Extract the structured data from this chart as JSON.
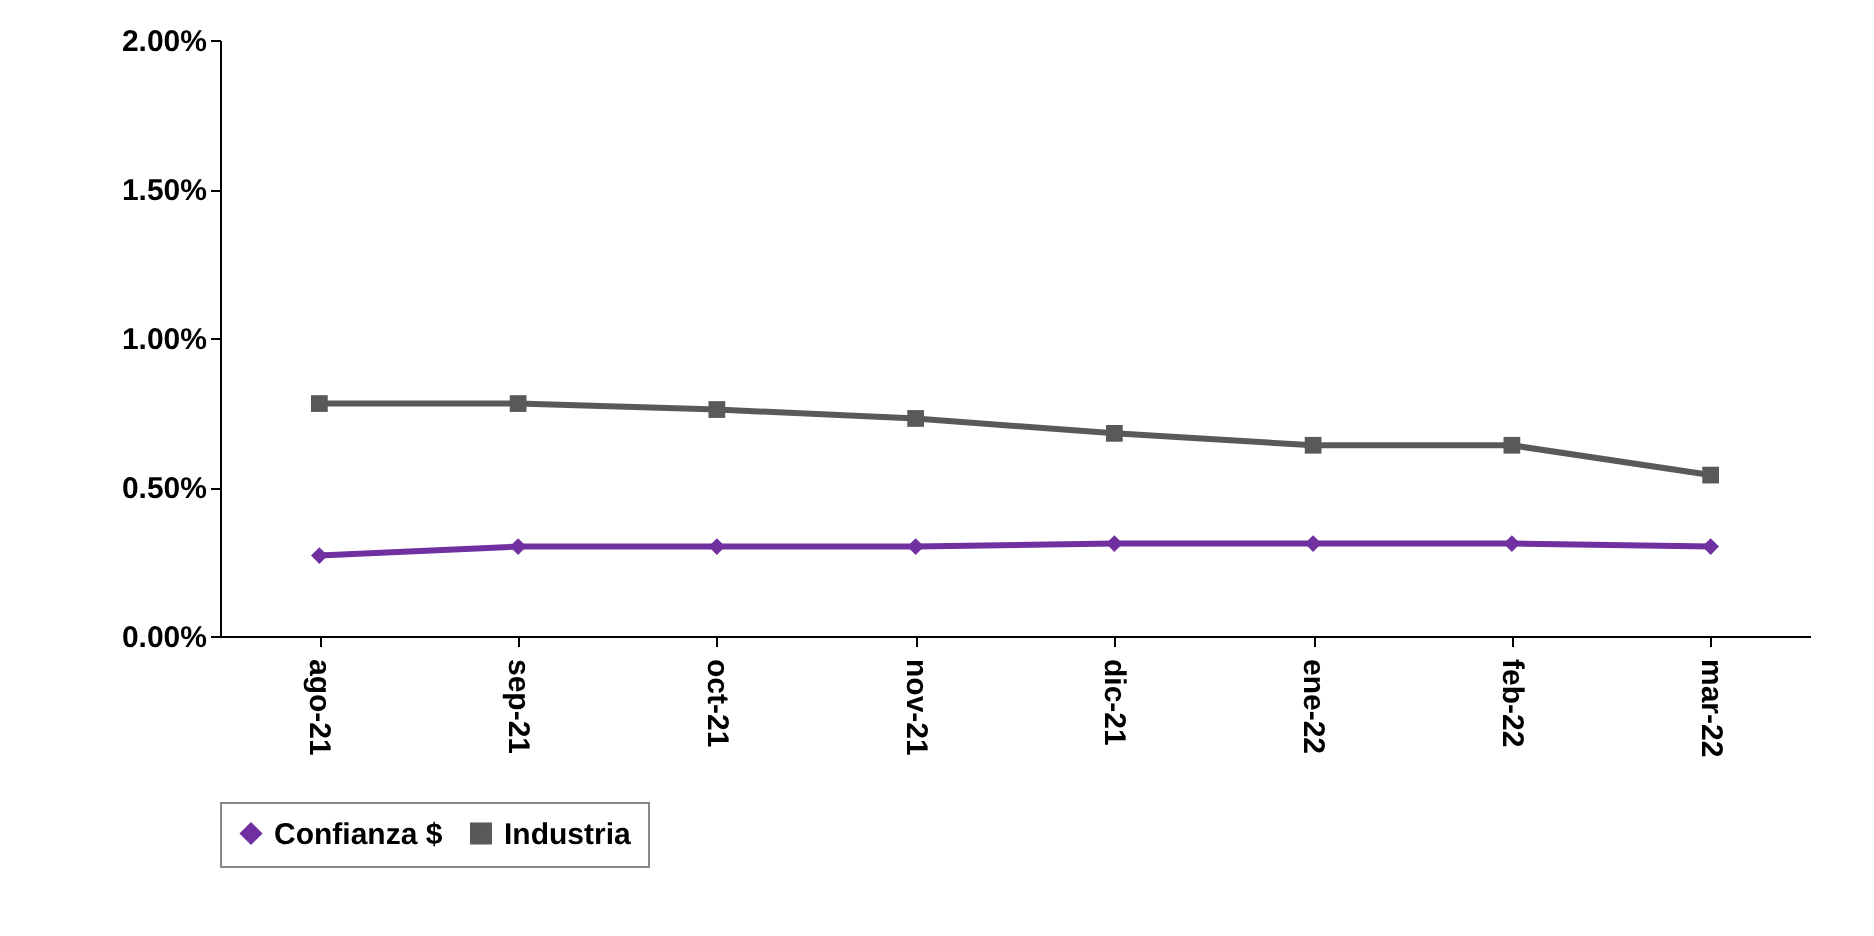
{
  "chart_data": {
    "type": "line",
    "categories": [
      "ago-21",
      "sep-21",
      "oct-21",
      "nov-21",
      "dic-21",
      "ene-22",
      "feb-22",
      "mar-22"
    ],
    "series": [
      {
        "name": "Confianza $",
        "color": "#7030a0",
        "marker": "diamond",
        "values": [
          0.27,
          0.3,
          0.3,
          0.3,
          0.31,
          0.31,
          0.31,
          0.3
        ]
      },
      {
        "name": "Industria",
        "color": "#595959",
        "marker": "square",
        "values": [
          0.78,
          0.78,
          0.76,
          0.73,
          0.68,
          0.64,
          0.64,
          0.54
        ]
      }
    ],
    "ylim": [
      0,
      2
    ],
    "yticks": [
      {
        "value": 0,
        "label": "0.00%"
      },
      {
        "value": 0.5,
        "label": "0.50%"
      },
      {
        "value": 1,
        "label": "1.00%"
      },
      {
        "value": 1.5,
        "label": "1.50%"
      },
      {
        "value": 2,
        "label": "2.00%"
      }
    ],
    "grid": false,
    "legend": "bottom",
    "line_style": "solid"
  }
}
